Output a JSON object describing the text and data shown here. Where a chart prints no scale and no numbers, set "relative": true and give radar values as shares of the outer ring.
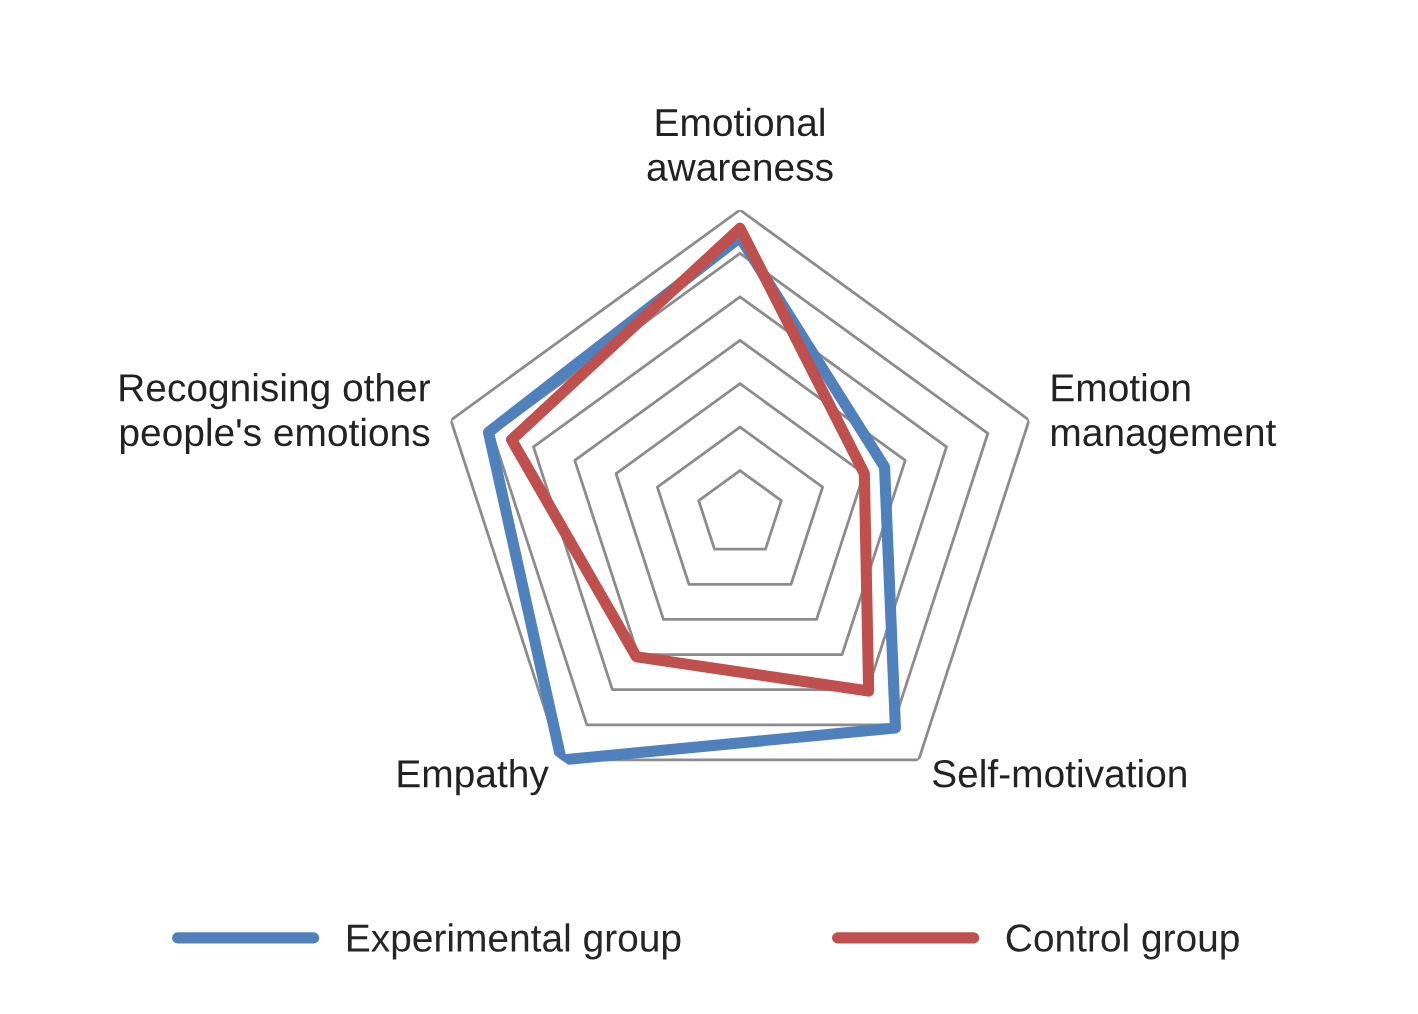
{
  "chart_data": {
    "type": "radar",
    "relative": true,
    "grid": true,
    "legend": "bottom",
    "categories": [
      "Emotional\nawareness",
      "Emotion\nmanagement",
      "Self-motivation",
      "Empathy",
      "Recognising other\npeople's emotions"
    ],
    "series": [
      {
        "name": "Experimental group",
        "color": "#4f81bd",
        "values": [
          0.91,
          0.5,
          0.87,
          1.0,
          0.87
        ]
      },
      {
        "name": "Control group",
        "color": "#c0504d",
        "values": [
          0.94,
          0.43,
          0.72,
          0.58,
          0.79
        ]
      }
    ]
  }
}
